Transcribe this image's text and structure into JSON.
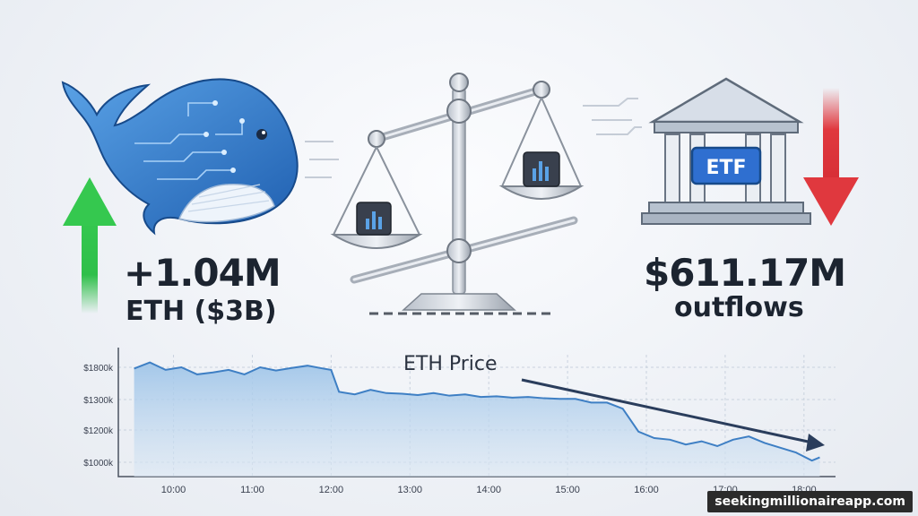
{
  "whale": {
    "value": "+1.04M",
    "sub": "ETH ($3B)"
  },
  "etf": {
    "badge": "ETF",
    "value": "$611.17M",
    "sub": "outflows"
  },
  "watermark": "seekingmillionaireapp.com",
  "icons": [
    "whale-icon",
    "balance-scale-icon",
    "bank-building-icon",
    "up-arrow-icon",
    "down-arrow-icon",
    "trend-arrow-icon"
  ],
  "colors": {
    "up": "#2fbf4a",
    "down": "#e0383e",
    "line": "#3e7fc4",
    "fill": "#bcd6ee",
    "text": "#1c2430"
  },
  "chart_data": {
    "type": "line",
    "title": "ETH Price",
    "y_ticks": [
      "$1800k",
      "$1300k",
      "$1200k",
      "$1000k"
    ],
    "x_ticks": [
      "10:00",
      "11:00",
      "12:00",
      "13:00",
      "14:00",
      "15:00",
      "16:00",
      "17:00",
      "18:00"
    ],
    "trend": "downward",
    "series": [
      {
        "x": [
          9.5,
          9.7,
          9.9,
          10.1,
          10.3,
          10.5,
          10.7,
          10.9,
          11.1,
          11.3,
          11.5,
          11.7,
          11.9,
          12.0,
          12.1,
          12.3,
          12.5,
          12.7,
          12.9,
          13.1,
          13.3,
          13.5,
          13.7,
          13.9,
          14.1,
          14.3,
          14.5,
          14.7,
          14.9,
          15.1,
          15.3,
          15.5,
          15.7,
          15.9,
          16.1,
          16.3,
          16.5,
          16.7,
          16.9,
          17.1,
          17.3,
          17.5,
          17.7,
          17.9,
          18.1,
          18.2
        ],
        "y": [
          1780,
          1830,
          1760,
          1800,
          1690,
          1720,
          1760,
          1690,
          1800,
          1750,
          1790,
          1810,
          1780,
          1760,
          1420,
          1380,
          1450,
          1400,
          1390,
          1370,
          1400,
          1360,
          1380,
          1340,
          1350,
          1330,
          1340,
          1320,
          1310,
          1310,
          1290,
          1290,
          1270,
          1190,
          1150,
          1140,
          1110,
          1130,
          1100,
          1140,
          1160,
          1120,
          1090,
          1060,
          1010,
          1030
        ]
      }
    ]
  }
}
